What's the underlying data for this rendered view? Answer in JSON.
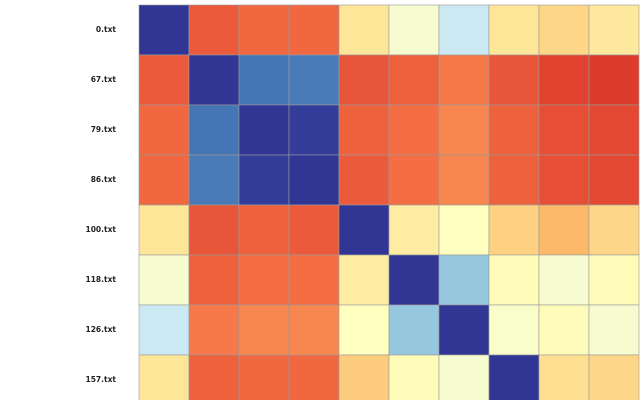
{
  "chart_data": {
    "type": "heatmap",
    "row_labels": [
      "0.txt",
      "67.txt",
      "79.txt",
      "86.txt",
      "100.txt",
      "118.txt",
      "126.txt",
      "157.txt"
    ],
    "column_labels": [],
    "colormap": "RdYlBu",
    "colormap_colors": [
      "#313695",
      "#4575b4",
      "#74add1",
      "#abd9e9",
      "#e0f3f8",
      "#ffffbf",
      "#fee090",
      "#fdae61",
      "#f46d43",
      "#d73027",
      "#a50026"
    ],
    "vmin": 0,
    "vmax": 1,
    "visible_columns": 10,
    "values": [
      [
        0.0,
        0.83,
        0.81,
        0.81,
        0.58,
        0.47,
        0.36,
        0.58,
        0.62,
        0.57
      ],
      [
        0.83,
        0.0,
        0.1,
        0.11,
        0.84,
        0.82,
        0.78,
        0.84,
        0.87,
        0.88
      ],
      [
        0.81,
        0.1,
        0.0,
        0.01,
        0.82,
        0.8,
        0.76,
        0.82,
        0.85,
        0.86
      ],
      [
        0.81,
        0.11,
        0.01,
        0.0,
        0.83,
        0.8,
        0.76,
        0.82,
        0.85,
        0.86
      ],
      [
        0.58,
        0.84,
        0.82,
        0.83,
        0.0,
        0.56,
        0.5,
        0.63,
        0.68,
        0.62
      ],
      [
        0.47,
        0.82,
        0.8,
        0.8,
        0.56,
        0.0,
        0.26,
        0.51,
        0.47,
        0.51
      ],
      [
        0.36,
        0.78,
        0.76,
        0.76,
        0.5,
        0.26,
        0.0,
        0.48,
        0.51,
        0.47
      ],
      [
        0.58,
        0.82,
        0.81,
        0.81,
        0.64,
        0.51,
        0.47,
        0.0,
        0.6,
        0.62
      ]
    ],
    "grid": true
  }
}
